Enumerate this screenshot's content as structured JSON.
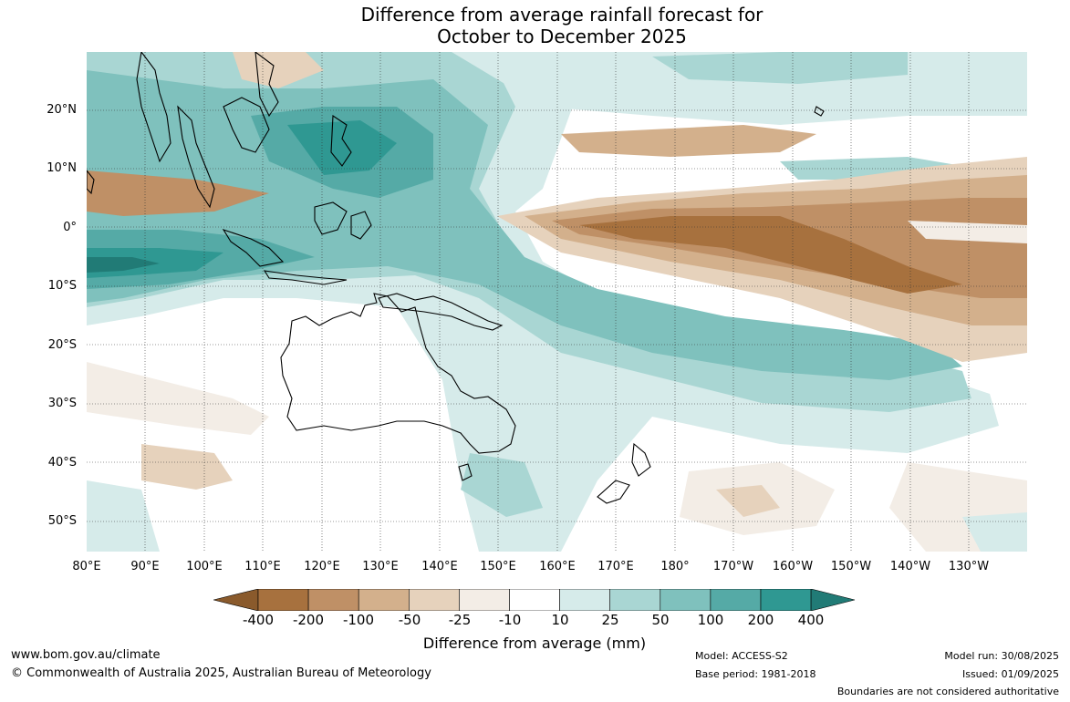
{
  "title": {
    "line1": "Difference from average rainfall forecast for",
    "line2": "October to December 2025"
  },
  "map": {
    "lat_labels": [
      "20°N",
      "10°N",
      "0°",
      "10°S",
      "20°S",
      "30°S",
      "40°S",
      "50°S"
    ],
    "lon_labels": [
      "80°E",
      "90°E",
      "100°E",
      "110°E",
      "120°E",
      "130°E",
      "140°E",
      "150°E",
      "160°E",
      "170°E",
      "180°",
      "170°W",
      "160°W",
      "150°W",
      "140°W",
      "130°W"
    ]
  },
  "legend": {
    "ticks": [
      "-400",
      "-200",
      "-100",
      "-50",
      "-25",
      "-10",
      "10",
      "25",
      "50",
      "100",
      "200",
      "400"
    ],
    "colors": [
      "#8a5a2c",
      "#a7713e",
      "#bf9066",
      "#d3b08c",
      "#e6d2bc",
      "#f3ede6",
      "#ffffff",
      "#d6ebea",
      "#a9d6d3",
      "#7fc1bd",
      "#55aaa6",
      "#2f9892",
      "#217b76"
    ],
    "label": "Difference from average (mm)"
  },
  "footer": {
    "url": "www.bom.gov.au/climate",
    "copyright": "© Commonwealth of Australia 2025, Australian Bureau of Meteorology",
    "model": "Model: ACCESS-S2",
    "base_period": "Base period: 1981-2018",
    "model_run": "Model run: 30/08/2025",
    "issued": "Issued: 01/09/2025",
    "disclaimer": "Boundaries are not considered authoritative"
  }
}
